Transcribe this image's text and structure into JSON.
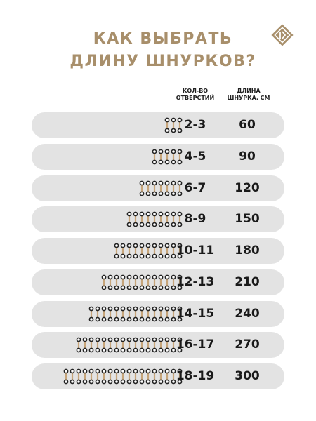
{
  "title": {
    "line1": "КАК ВЫБРАТЬ",
    "line2": "ДЛИНУ ШНУРКОВ?"
  },
  "logo_icon": "brand-logo-icon",
  "headers": {
    "holes_line1": "КОЛ-ВО",
    "holes_line2": "ОТВЕРСТИЙ",
    "length_line1": "ДЛИНА",
    "length_line2": "ШНУРКА, СМ"
  },
  "colors": {
    "accent": "#a88f6b",
    "row_bg": "#e3e3e3",
    "lace": "#c7a57a",
    "eyelet": "#222222"
  },
  "rows": [
    {
      "holes": "2-3",
      "length": "60",
      "eyelet_pairs": 3
    },
    {
      "holes": "4-5",
      "length": "90",
      "eyelet_pairs": 5
    },
    {
      "holes": "6-7",
      "length": "120",
      "eyelet_pairs": 7
    },
    {
      "holes": "8-9",
      "length": "150",
      "eyelet_pairs": 9
    },
    {
      "holes": "10-11",
      "length": "180",
      "eyelet_pairs": 11
    },
    {
      "holes": "12-13",
      "length": "210",
      "eyelet_pairs": 13
    },
    {
      "holes": "14-15",
      "length": "240",
      "eyelet_pairs": 15
    },
    {
      "holes": "16-17",
      "length": "270",
      "eyelet_pairs": 17
    },
    {
      "holes": "18-19",
      "length": "300",
      "eyelet_pairs": 19
    }
  ]
}
